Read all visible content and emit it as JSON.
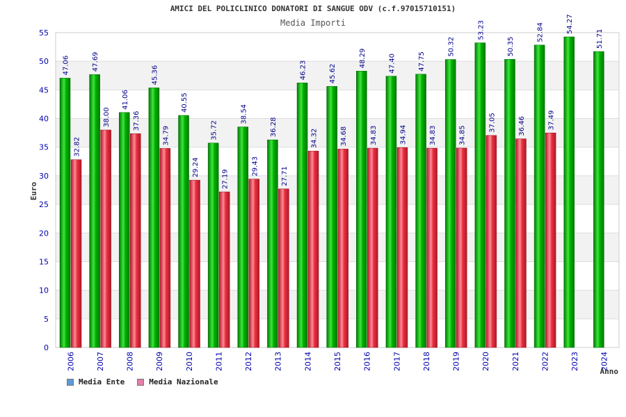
{
  "chart_data": {
    "type": "bar",
    "title": "AMICI DEL POLICLINICO DONATORI DI SANGUE ODV (c.f.97015710151)",
    "subtitle": "Media Importi",
    "xlabel": "Anno",
    "ylabel": "Euro",
    "ylim": [
      0,
      55
    ],
    "yticks": [
      "0",
      "5",
      "10",
      "15",
      "20",
      "25",
      "30",
      "35",
      "40",
      "45",
      "50",
      "55"
    ],
    "categories": [
      "2006",
      "2007",
      "2008",
      "2009",
      "2010",
      "2011",
      "2012",
      "2013",
      "2014",
      "2015",
      "2016",
      "2017",
      "2018",
      "2019",
      "2020",
      "2021",
      "2022",
      "2023",
      "2024"
    ],
    "series": [
      {
        "name": "Media Ente",
        "color": "#00b000",
        "legend_color": "#5b9bd5",
        "values": [
          47.06,
          47.69,
          41.06,
          45.36,
          40.55,
          35.72,
          38.54,
          36.28,
          46.23,
          45.62,
          48.29,
          47.4,
          47.75,
          50.32,
          53.23,
          50.35,
          52.84,
          54.27,
          51.71
        ],
        "labels": [
          "47.06",
          "47.69",
          "41.06",
          "45.36",
          "40.55",
          "35.72",
          "38.54",
          "36.28",
          "46.23",
          "45.62",
          "48.29",
          "47.40",
          "47.75",
          "50.32",
          "53.23",
          "50.35",
          "52.84",
          "54.27",
          "51.71"
        ]
      },
      {
        "name": "Media Nazionale",
        "color": "#e83040",
        "legend_color": "#e37fa8",
        "values": [
          32.82,
          38.0,
          37.36,
          34.79,
          29.24,
          27.19,
          29.43,
          27.71,
          34.32,
          34.68,
          34.83,
          34.94,
          34.83,
          34.85,
          37.05,
          36.46,
          37.49,
          null,
          null
        ],
        "labels": [
          "32.82",
          "38.00",
          "37.36",
          "34.79",
          "29.24",
          "27.19",
          "29.43",
          "27.71",
          "34.32",
          "34.68",
          "34.83",
          "34.94",
          "34.83",
          "34.85",
          "37.05",
          "36.46",
          "37.49",
          null,
          null
        ]
      }
    ],
    "grid": true,
    "legend_position": "bottom-left"
  }
}
